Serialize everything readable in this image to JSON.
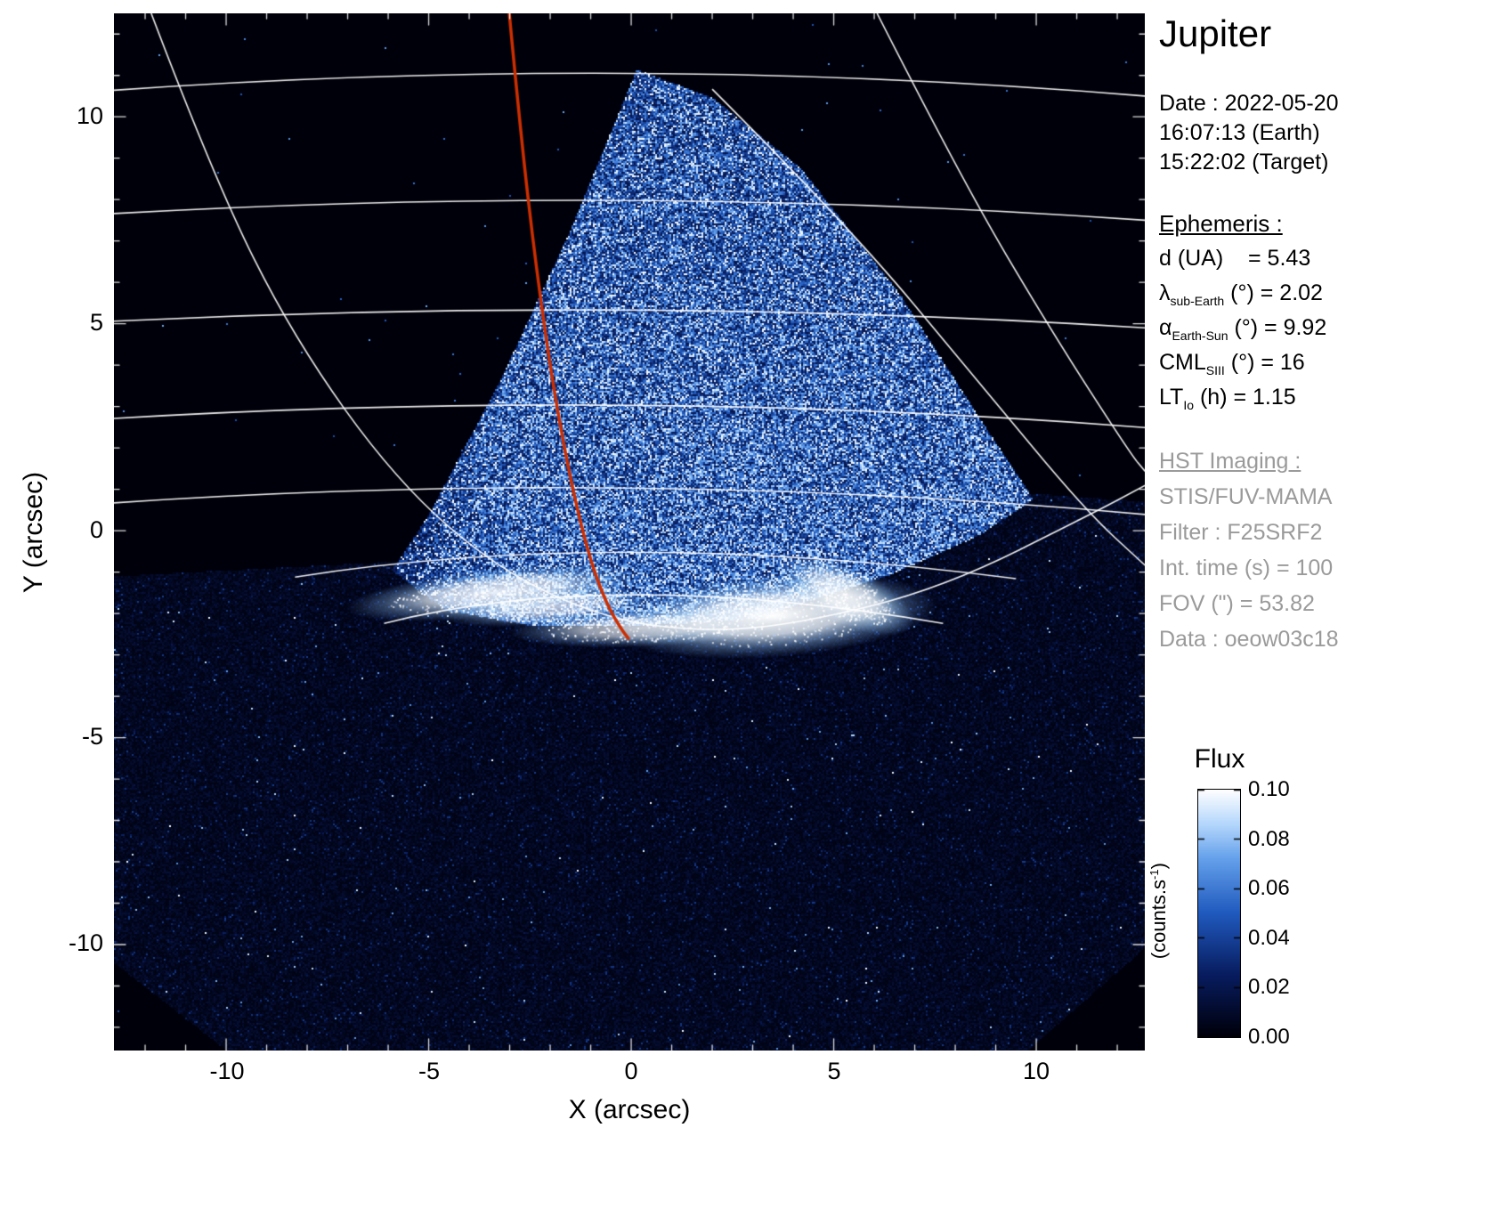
{
  "title": "Jupiter",
  "observation": {
    "date": "Date : 2022-05-20",
    "earth_time": "16:07:13 (Earth)",
    "target_time": "15:22:02 (Target)"
  },
  "ephemeris": {
    "heading": "Ephemeris :",
    "rows": [
      {
        "sym": "d",
        "sub": "",
        "rest": " (UA)    = 5.43"
      },
      {
        "sym": "λ",
        "sub": "sub-Earth",
        "rest": " (°) = 2.02"
      },
      {
        "sym": "α",
        "sub": "Earth-Sun",
        "rest": " (°) = 9.92"
      },
      {
        "sym": "CML",
        "sub": "SIII",
        "rest": " (°) = 16"
      },
      {
        "sym": "LT",
        "sub": "Io",
        "rest": " (h) = 1.15"
      }
    ]
  },
  "hst": {
    "heading": "HST Imaging :",
    "lines": [
      "STIS/FUV-MAMA",
      "Filter : F25SRF2",
      "Int. time (s) = 100",
      "FOV (\") = 53.82",
      "Data : oeow03c18"
    ]
  },
  "chart_data": {
    "type": "heatmap",
    "title": "Jupiter",
    "xlabel": "X (arcsec)",
    "ylabel": "Y (arcsec)",
    "xlim": [
      -12.77,
      12.68
    ],
    "ylim": [
      -12.56,
      12.5
    ],
    "xticks": [
      "-10",
      "-5",
      "0",
      "5",
      "10"
    ],
    "yticks": [
      "10",
      "5",
      "0",
      "-5",
      "-10"
    ],
    "minor_tick_step": 1,
    "colorbar": {
      "title": "Flux",
      "unit_base": "(counts.s",
      "unit_sup": "-1",
      "unit_close": ")",
      "ticks": [
        "0.10",
        "0.08",
        "0.06",
        "0.04",
        "0.02",
        "0.00"
      ],
      "range": [
        0.0,
        0.1
      ]
    },
    "image": {
      "background": "#000000",
      "grid_color": "#ffffff",
      "track_color": "#cc2e00",
      "colormap_stops": [
        [
          0.0,
          0,
          0,
          10
        ],
        [
          0.25,
          8,
          28,
          95
        ],
        [
          0.5,
          32,
          90,
          190
        ],
        [
          0.72,
          100,
          160,
          235
        ],
        [
          0.86,
          180,
          215,
          252
        ],
        [
          1.0,
          255,
          255,
          255
        ]
      ],
      "detector_region": [
        [
          -12.8,
          -1.1
        ],
        [
          -5.9,
          -0.75
        ],
        [
          0.0,
          -1.9
        ],
        [
          5.0,
          -1.7
        ],
        [
          9.9,
          0.9
        ],
        [
          12.75,
          0.7
        ],
        [
          12.75,
          -10.0
        ],
        [
          9.7,
          -12.62
        ],
        [
          -9.9,
          -12.62
        ],
        [
          -12.8,
          -10.4
        ]
      ],
      "sunlit_wedge": [
        [
          0.13,
          11.15
        ],
        [
          -1.52,
          7.23
        ],
        [
          -3.27,
          3.57
        ],
        [
          -5.03,
          0.34
        ],
        [
          -5.91,
          -0.95
        ],
        [
          -4.6,
          -1.9
        ],
        [
          -2.4,
          -2.3
        ],
        [
          0.13,
          -2.3
        ],
        [
          3.1,
          -2.1
        ],
        [
          6.4,
          -1.05
        ],
        [
          8.6,
          -0.09
        ],
        [
          9.91,
          0.77
        ],
        [
          8.6,
          2.71
        ],
        [
          6.62,
          5.72
        ],
        [
          4.2,
          8.74
        ],
        [
          2.0,
          10.46
        ]
      ],
      "aurora_blobs": [
        [
          -3.4,
          -1.5,
          2.6,
          0.42,
          -6,
          0.88
        ],
        [
          3.5,
          -2.05,
          2.9,
          0.72,
          -4,
          1.0
        ],
        [
          0.2,
          -2.35,
          2.3,
          0.33,
          -2,
          0.75
        ],
        [
          -2.0,
          -1.85,
          1.9,
          0.3,
          -5,
          0.7
        ],
        [
          5.3,
          -1.55,
          1.3,
          0.5,
          25,
          0.85
        ]
      ],
      "parallels": [
        [
          [
            -12.8,
            10.64
          ],
          [
            0.0,
            11.05
          ],
          [
            12.7,
            10.5
          ]
        ],
        [
          [
            -12.8,
            7.66
          ],
          [
            0.0,
            7.98
          ],
          [
            12.7,
            7.5
          ]
        ],
        [
          [
            -12.8,
            5.06
          ],
          [
            0.0,
            5.33
          ],
          [
            12.7,
            4.9
          ]
        ],
        [
          [
            -12.8,
            2.71
          ],
          [
            0.0,
            3.03
          ],
          [
            12.7,
            2.49
          ]
        ],
        [
          [
            -12.8,
            0.67
          ],
          [
            0.0,
            1.03
          ],
          [
            12.7,
            0.39
          ]
        ],
        [
          [
            -8.3,
            -1.12
          ],
          [
            0.1,
            -0.52
          ],
          [
            9.5,
            -1.16
          ]
        ],
        [
          [
            -6.1,
            -2.24
          ],
          [
            0.13,
            -1.55
          ],
          [
            7.7,
            -2.24
          ]
        ]
      ],
      "curves": [
        [
          [
            -11.85,
            12.5
          ],
          [
            -10.3,
            8.5
          ],
          [
            -8.33,
            4.65
          ],
          [
            -5.8,
            1.2
          ],
          [
            -3.27,
            -0.95
          ],
          [
            -0.64,
            -2.13
          ],
          [
            1.78,
            -2.45
          ],
          [
            4.2,
            -2.24
          ],
          [
            7.7,
            -1.38
          ],
          [
            11.46,
            0.45
          ],
          [
            12.7,
            1.1
          ]
        ],
        [
          [
            6.07,
            12.5
          ],
          [
            8.15,
            8.5
          ],
          [
            10.35,
            4.86
          ],
          [
            12.33,
            1.85
          ],
          [
            12.7,
            1.42
          ]
        ],
        [
          [
            2.0,
            10.67
          ],
          [
            5.3,
            7.44
          ],
          [
            8.6,
            3.57
          ],
          [
            11.2,
            0.5
          ],
          [
            12.7,
            -0.85
          ]
        ]
      ],
      "io_track": [
        [
          -3.01,
          12.5
        ],
        [
          -2.73,
          9.6
        ],
        [
          -2.35,
          6.37
        ],
        [
          -1.91,
          3.36
        ],
        [
          -1.45,
          0.99
        ],
        [
          -1.01,
          -0.73
        ],
        [
          -0.59,
          -1.81
        ],
        [
          -0.24,
          -2.39
        ],
        [
          -0.07,
          -2.6
        ]
      ]
    }
  }
}
